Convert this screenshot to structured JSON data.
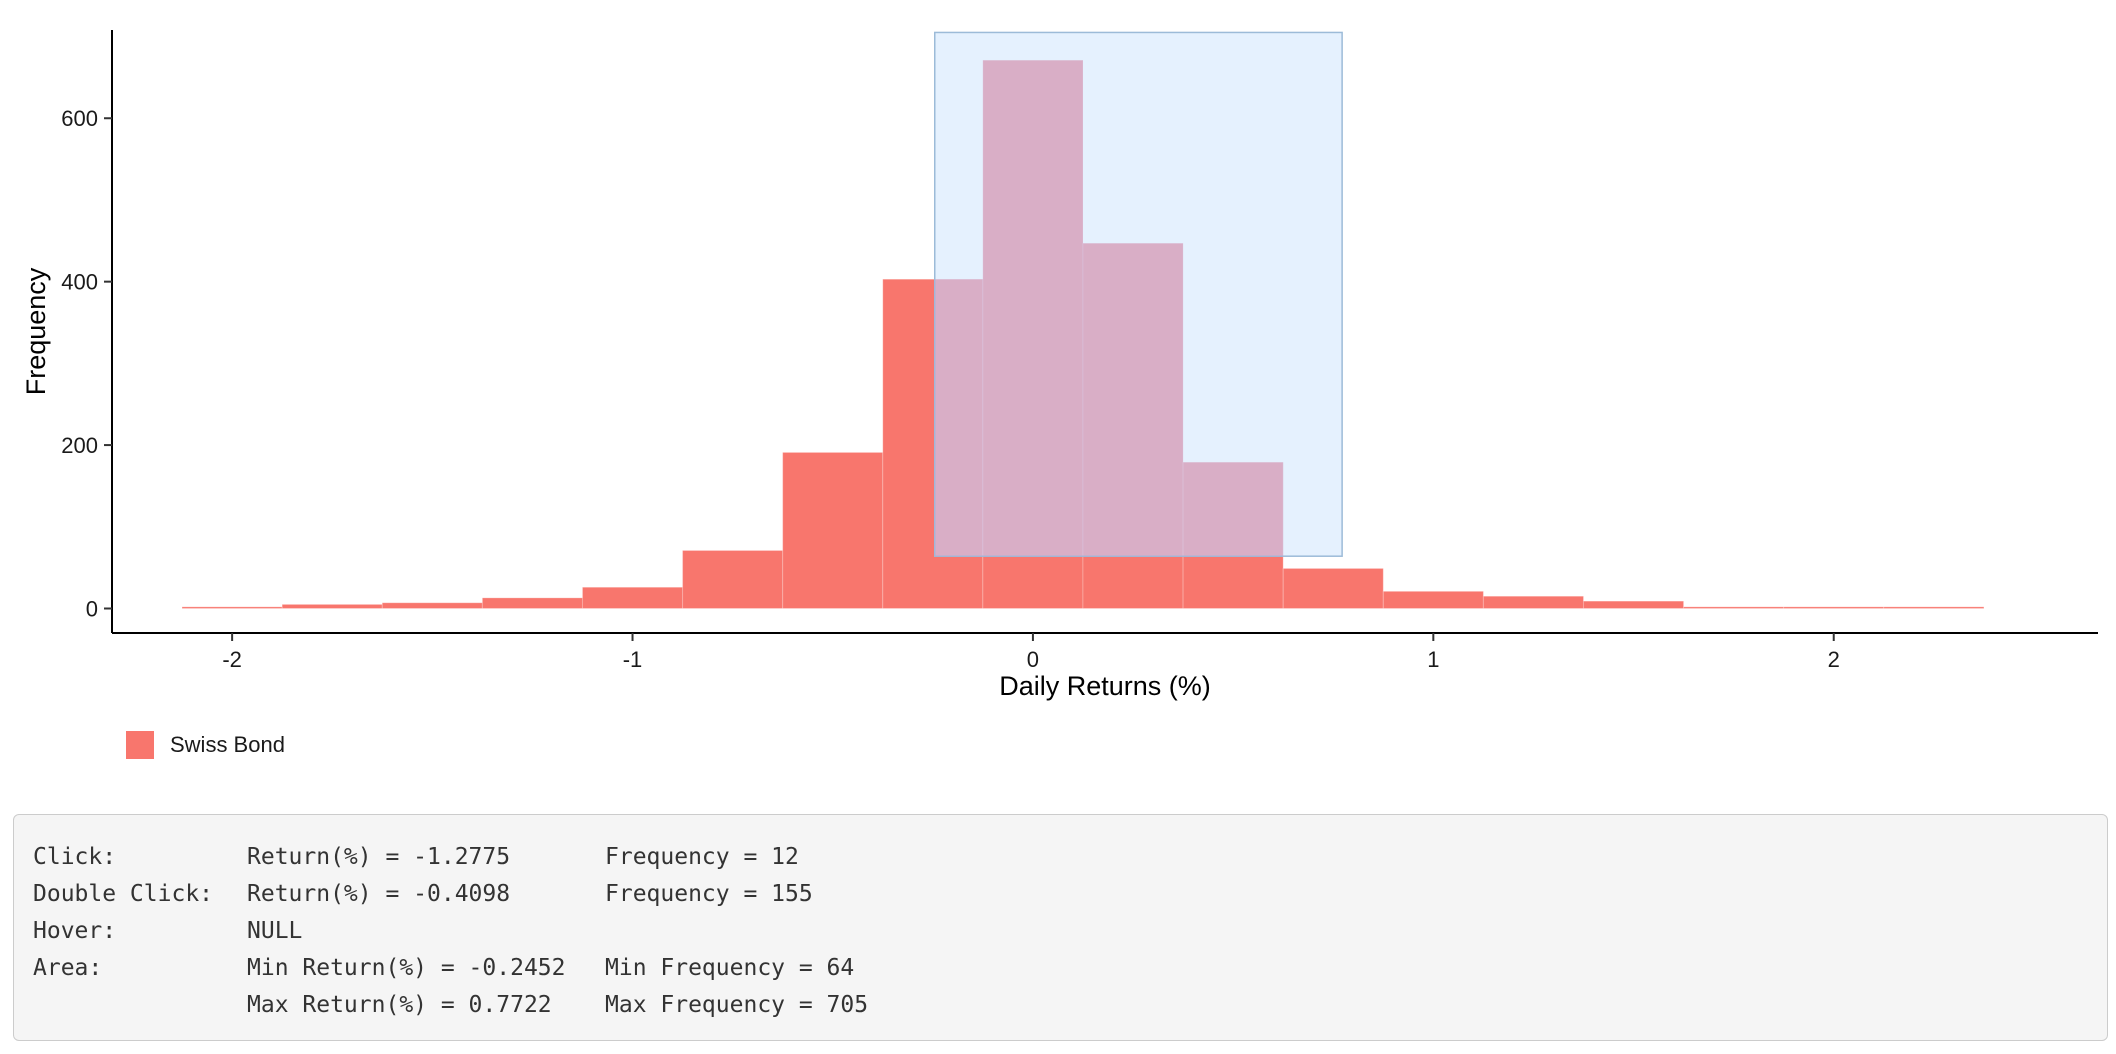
{
  "chart_data": {
    "type": "bar",
    "xlabel": "Daily Returns (%)",
    "ylabel": "Frequency",
    "xlim": [
      -2.3,
      2.66
    ],
    "ylim": [
      -30,
      708
    ],
    "xticks": [
      "-2",
      "-1",
      "0",
      "1",
      "2"
    ],
    "yticks": [
      "0",
      "200",
      "400",
      "600"
    ],
    "grid": false,
    "legend_position": "bottom-left",
    "series": [
      {
        "name": "Swiss Bond",
        "color": "#f8766d",
        "bins": [
          {
            "x0": -2.125,
            "x1": -1.875,
            "count": 2
          },
          {
            "x0": -1.875,
            "x1": -1.625,
            "count": 5
          },
          {
            "x0": -1.625,
            "x1": -1.375,
            "count": 7
          },
          {
            "x0": -1.375,
            "x1": -1.125,
            "count": 13
          },
          {
            "x0": -1.125,
            "x1": -0.875,
            "count": 26
          },
          {
            "x0": -0.875,
            "x1": -0.625,
            "count": 71
          },
          {
            "x0": -0.625,
            "x1": -0.375,
            "count": 191
          },
          {
            "x0": -0.375,
            "x1": -0.125,
            "count": 403
          },
          {
            "x0": -0.125,
            "x1": 0.125,
            "count": 671
          },
          {
            "x0": 0.125,
            "x1": 0.375,
            "count": 447
          },
          {
            "x0": 0.375,
            "x1": 0.625,
            "count": 179
          },
          {
            "x0": 0.625,
            "x1": 0.875,
            "count": 49
          },
          {
            "x0": 0.875,
            "x1": 1.125,
            "count": 21
          },
          {
            "x0": 1.125,
            "x1": 1.375,
            "count": 15
          },
          {
            "x0": 1.375,
            "x1": 1.625,
            "count": 9
          },
          {
            "x0": 1.625,
            "x1": 1.875,
            "count": 2
          },
          {
            "x0": 1.875,
            "x1": 2.125,
            "count": 2
          },
          {
            "x0": 2.125,
            "x1": 2.375,
            "count": 2
          }
        ]
      }
    ],
    "brush": {
      "xmin": -0.2452,
      "xmax": 0.7722,
      "ymin": 64,
      "ymax": 705,
      "fill": "#cfe6fd",
      "stroke": "#9cbbd8"
    }
  },
  "legend": {
    "label": "Swiss Bond",
    "color": "#f8766d"
  },
  "info": {
    "click": {
      "label": "Click:",
      "return": "Return(%) = -1.2775",
      "frequency": "Frequency = 12"
    },
    "dblclick": {
      "label": "Double Click:",
      "return": "Return(%) = -0.4098",
      "frequency": "Frequency = 155"
    },
    "hover": {
      "label": "Hover:",
      "value": "NULL"
    },
    "area": {
      "label": "Area:",
      "min_return": "Min Return(%) = -0.2452",
      "min_frequency": "Min Frequency = 64",
      "max_return": "Max Return(%) = 0.7722",
      "max_frequency": "Max Frequency = 705"
    }
  }
}
